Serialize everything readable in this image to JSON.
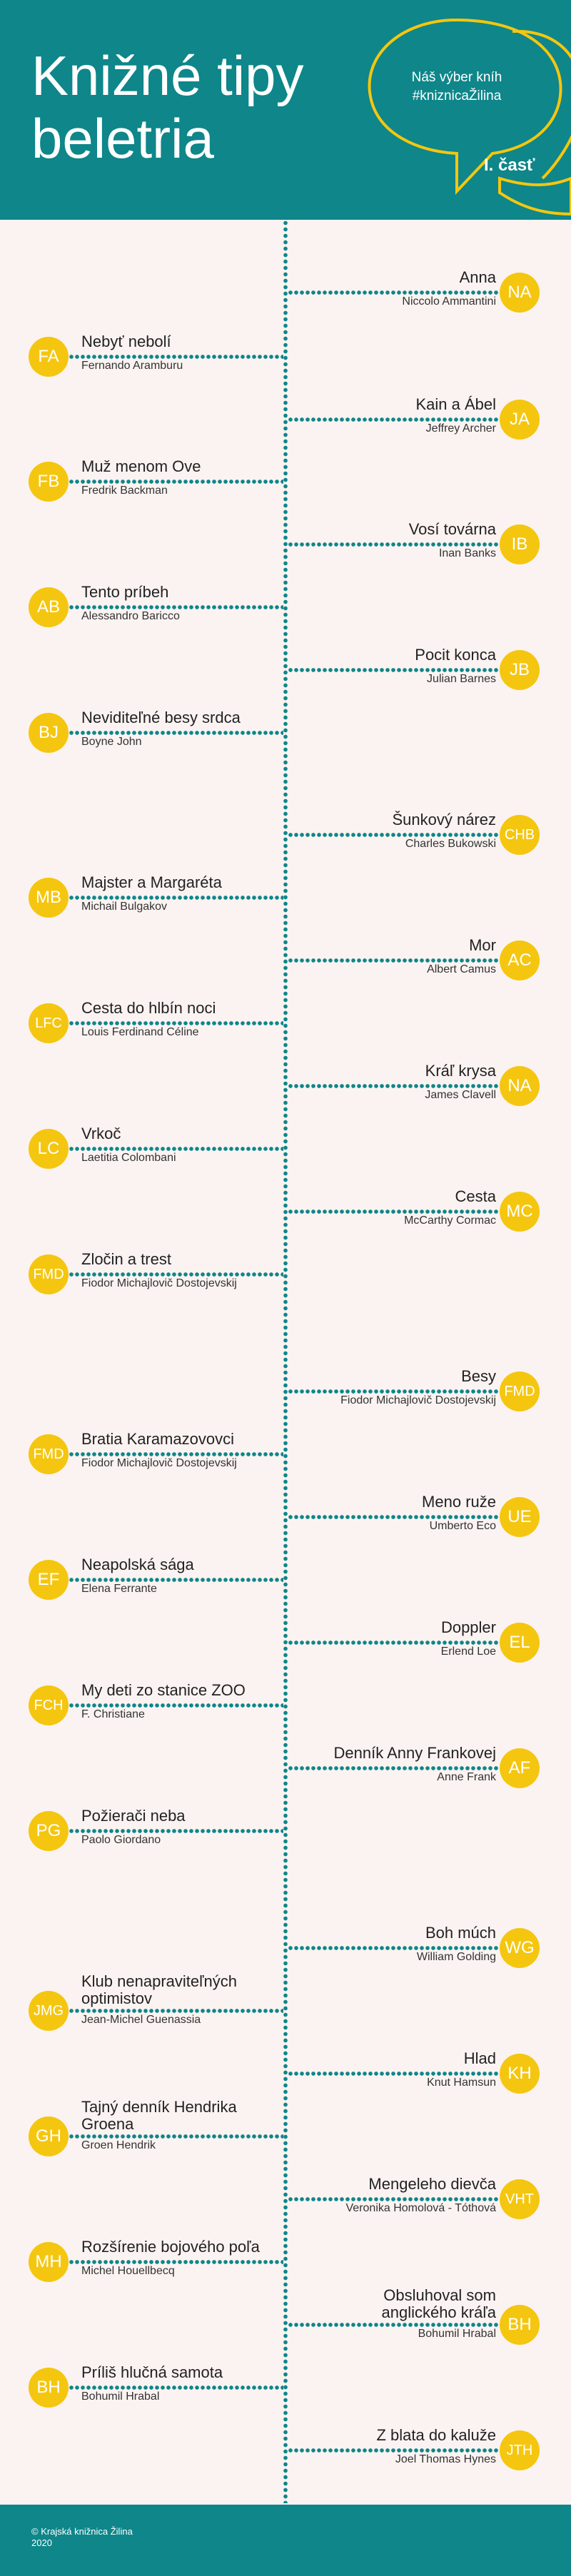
{
  "header": {
    "title": "Knižné tipy\nbeletria",
    "bubble": "Náš výber kníh\n#kniznicaŽilina",
    "part": "I. časť",
    "color": "#0e868a",
    "accent": "#f5c60f"
  },
  "entries": [
    {
      "side": "right",
      "initials": "NA",
      "title": "Anna",
      "author": "Niccolo Ammantini"
    },
    {
      "side": "left",
      "initials": "FA",
      "title": "Nebyť nebolí",
      "author": "Fernando Aramburu"
    },
    {
      "side": "right",
      "initials": "JA",
      "title": "Kain a Ábel",
      "author": "Jeffrey Archer"
    },
    {
      "side": "left",
      "initials": "FB",
      "title": "Muž menom Ove",
      "author": "Fredrik Backman"
    },
    {
      "side": "right",
      "initials": "IB",
      "title": "Vosí továrna",
      "author": "Inan Banks"
    },
    {
      "side": "left",
      "initials": "AB",
      "title": "Tento príbeh",
      "author": "Alessandro Baricco"
    },
    {
      "side": "right",
      "initials": "JB",
      "title": "Pocit konca",
      "author": "Julian Barnes"
    },
    {
      "side": "left",
      "initials": "BJ",
      "title": "Neviditeľné besy srdca",
      "author": "Boyne John"
    },
    {
      "side": "right",
      "initials": "CHB",
      "title": "Šunkový nárez",
      "author": "Charles Bukowski"
    },
    {
      "side": "left",
      "initials": "MB",
      "title": "Majster a Margaréta",
      "author": "Michail Bulgakov"
    },
    {
      "side": "right",
      "initials": "AC",
      "title": "Mor",
      "author": "Albert Camus"
    },
    {
      "side": "left",
      "initials": "LFC",
      "title": "Cesta do hlbín noci",
      "author": "Louis Ferdinand Céline"
    },
    {
      "side": "right",
      "initials": "NA",
      "title": "Kráľ krysa",
      "author": "James Clavell"
    },
    {
      "side": "left",
      "initials": "LC",
      "title": "Vrkoč",
      "author": "Laetitia Colombani"
    },
    {
      "side": "right",
      "initials": "MC",
      "title": "Cesta",
      "author": "McCarthy Cormac"
    },
    {
      "side": "left",
      "initials": "FMD",
      "title": "Zločin a trest",
      "author": "Fiodor Michajlovič Dostojevskij"
    },
    {
      "side": "right",
      "initials": "FMD",
      "title": "Besy",
      "author": "Fiodor Michajlovič Dostojevskij"
    },
    {
      "side": "left",
      "initials": "FMD",
      "title": "Bratia Karamazovovci",
      "author": "Fiodor Michajlovič Dostojevskij"
    },
    {
      "side": "right",
      "initials": "UE",
      "title": "Meno ruže",
      "author": "Umberto Eco"
    },
    {
      "side": "left",
      "initials": "EF",
      "title": "Neapolská sága",
      "author": "Elena Ferrante"
    },
    {
      "side": "right",
      "initials": "EL",
      "title": "Doppler",
      "author": "Erlend Loe"
    },
    {
      "side": "left",
      "initials": "FCH",
      "title": "My deti zo stanice ZOO",
      "author": "F. Christiane"
    },
    {
      "side": "right",
      "initials": "AF",
      "title": "Denník Anny Frankovej",
      "author": "Anne Frank"
    },
    {
      "side": "left",
      "initials": "PG",
      "title": "Požierači neba",
      "author": "Paolo Giordano"
    },
    {
      "side": "right",
      "initials": "WG",
      "title": "Boh múch",
      "author": "William Golding"
    },
    {
      "side": "left",
      "initials": "JMG",
      "title": "Klub nenapraviteľných\noptimistov",
      "author": "Jean-Michel Guenassia"
    },
    {
      "side": "right",
      "initials": "KH",
      "title": "Hlad",
      "author": "Knut Hamsun"
    },
    {
      "side": "left",
      "initials": "GH",
      "title": "Tajný denník Hendrika\nGroena",
      "author": "Groen Hendrik"
    },
    {
      "side": "right",
      "initials": "VHT",
      "title": "Mengeleho dievča",
      "author": "Veronika Homolová - Tóthová"
    },
    {
      "side": "left",
      "initials": "MH",
      "title": "Rozšírenie bojového poľa",
      "author": "Michel Houellbecq"
    },
    {
      "side": "right",
      "initials": "BH",
      "title": "Obsluhoval som\nanglického kráľa",
      "author": "Bohumil Hrabal"
    },
    {
      "side": "left",
      "initials": "BH",
      "title": "Príliš hlučná samota",
      "author": "Bohumil Hrabal"
    },
    {
      "side": "right",
      "initials": "JTH",
      "title": "Z blata do kaluže",
      "author": "Joel Thomas Hynes"
    }
  ],
  "footer": {
    "text": "© Krajská knižnica Žilina\n2020"
  }
}
